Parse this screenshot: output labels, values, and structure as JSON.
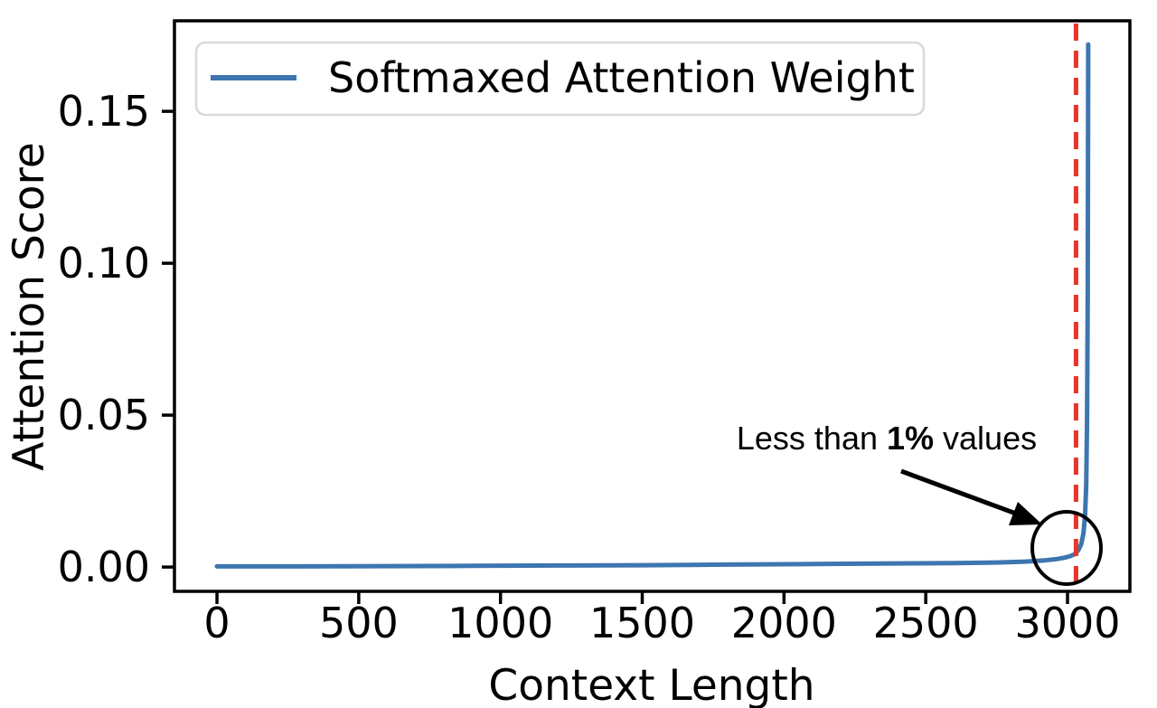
{
  "chart_data": {
    "type": "line",
    "title": "",
    "xlabel": "Context Length",
    "ylabel": "Attention Score",
    "grid": false,
    "legend_position": "upper left",
    "x_tick_labels": [
      "0",
      "500",
      "1000",
      "1500",
      "2000",
      "2500",
      "3000"
    ],
    "x_tick_values": [
      0,
      500,
      1000,
      1500,
      2000,
      2500,
      3000
    ],
    "y_tick_labels": [
      "0.00",
      "0.05",
      "0.10",
      "0.15"
    ],
    "y_tick_values": [
      0,
      0.05,
      0.1,
      0.15
    ],
    "xlim": [
      -150,
      3220
    ],
    "ylim": [
      -0.008,
      0.1798
    ],
    "series": [
      {
        "name": "Softmaxed Attention Weight",
        "color": "#3d76b0",
        "x": [
          0,
          300,
          600,
          900,
          1200,
          1500,
          1800,
          2100,
          2400,
          2600,
          2750,
          2850,
          2920,
          2960,
          2990,
          3010,
          3025,
          3038,
          3048,
          3056,
          3062,
          3066,
          3069,
          3071,
          3072,
          3073
        ],
        "y": [
          0.0002,
          0.0002,
          0.0003,
          0.0004,
          0.0005,
          0.0006,
          0.0008,
          0.001,
          0.0012,
          0.0013,
          0.0015,
          0.0018,
          0.0022,
          0.0026,
          0.0031,
          0.0036,
          0.0042,
          0.0055,
          0.0075,
          0.011,
          0.017,
          0.027,
          0.048,
          0.085,
          0.125,
          0.172
        ]
      }
    ],
    "vline": {
      "x": 3030,
      "color": "#e5362a",
      "style": "dashed"
    },
    "annotation": {
      "text_normal_1": "Less than ",
      "text_bold": "1%",
      "text_normal_2": " values"
    }
  },
  "style_colors": {
    "axis": "#000000",
    "legend_border": "#d9d9d9",
    "annotation": "#000000"
  }
}
